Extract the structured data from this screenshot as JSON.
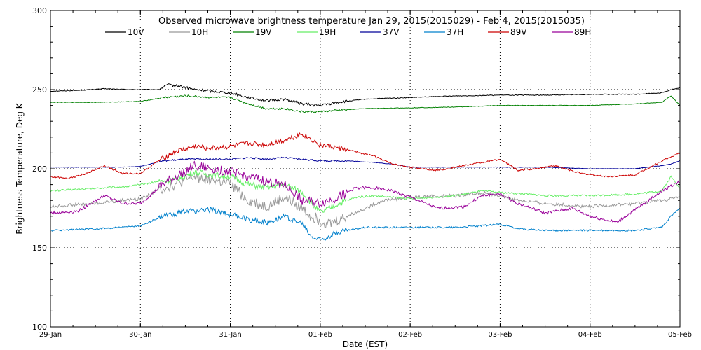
{
  "chart_data": {
    "type": "line",
    "title": "Observed microwave brightness temperature Jan 29, 2015(2015029) - Feb  4, 2015(2015035)",
    "xlabel": "Date (EST)",
    "ylabel": "Brightness Temperature, Deg K",
    "x_ticks": [
      "29-Jan",
      "30-Jan",
      "31-Jan",
      "01-Feb",
      "02-Feb",
      "03-Feb",
      "04-Feb",
      "05-Feb"
    ],
    "xlim": [
      0,
      7
    ],
    "ylim": [
      100,
      300
    ],
    "y_ticks": [
      100,
      150,
      200,
      250,
      300
    ],
    "grid": "dotted",
    "legend_placement": "top",
    "series": [
      {
        "name": "10V",
        "color": "#000000",
        "x": [
          0,
          0.3,
          0.6,
          0.9,
          1.2,
          1.3,
          1.45,
          1.6,
          1.8,
          2.0,
          2.2,
          2.4,
          2.6,
          2.8,
          3.0,
          3.2,
          3.5,
          4.0,
          4.5,
          5.0,
          5.5,
          6.0,
          6.5,
          6.8,
          6.9,
          7.0
        ],
        "y": [
          249,
          249.5,
          250.5,
          250,
          250,
          253,
          252,
          250,
          249,
          248,
          245,
          243,
          244,
          241,
          240,
          242,
          244,
          245,
          246,
          246.5,
          246.5,
          247,
          247,
          248,
          250,
          251
        ]
      },
      {
        "name": "10H",
        "color": "#999999",
        "x": [
          0,
          0.2,
          0.5,
          0.8,
          1.0,
          1.25,
          1.4,
          1.6,
          1.8,
          2.0,
          2.2,
          2.4,
          2.6,
          2.8,
          2.9,
          3.1,
          3.3,
          3.5,
          3.7,
          4.0,
          4.5,
          4.8,
          5.0,
          5.2,
          5.5,
          6.0,
          6.5,
          6.8,
          7.0
        ],
        "y": [
          176,
          177,
          178,
          180,
          181,
          188,
          190,
          195,
          193,
          190,
          180,
          176,
          182,
          175,
          170,
          165,
          170,
          175,
          180,
          182,
          183,
          185,
          183,
          180,
          178,
          176,
          178,
          180,
          182
        ]
      },
      {
        "name": "19V",
        "color": "#008000",
        "x": [
          0,
          0.5,
          1.0,
          1.25,
          1.5,
          1.8,
          2.0,
          2.2,
          2.4,
          2.6,
          2.8,
          3.0,
          3.2,
          3.5,
          4.0,
          4.5,
          5.0,
          5.5,
          6.0,
          6.5,
          6.8,
          6.9,
          7.0
        ],
        "y": [
          242,
          242,
          242.5,
          245,
          246,
          245,
          245,
          241,
          238,
          238,
          236,
          236,
          237,
          238,
          238.5,
          239,
          240,
          240,
          240,
          241,
          242,
          246,
          240
        ]
      },
      {
        "name": "19H",
        "color": "#66ee66",
        "x": [
          0,
          0.3,
          0.6,
          0.9,
          1.2,
          1.4,
          1.6,
          1.8,
          2.0,
          2.2,
          2.4,
          2.6,
          2.8,
          3.0,
          3.2,
          3.4,
          3.6,
          4.0,
          4.5,
          4.8,
          5.0,
          5.3,
          5.5,
          6.0,
          6.5,
          6.8,
          6.9,
          7.0
        ],
        "y": [
          186,
          187,
          188,
          189,
          192,
          193,
          198,
          196,
          195,
          190,
          188,
          190,
          185,
          172,
          178,
          182,
          183,
          181,
          183,
          186,
          185,
          184,
          183,
          183,
          184,
          186,
          195,
          188
        ]
      },
      {
        "name": "37V",
        "color": "#000099",
        "x": [
          0,
          0.5,
          0.8,
          1.0,
          1.25,
          1.5,
          1.8,
          2.0,
          2.2,
          2.4,
          2.6,
          2.8,
          3.0,
          3.3,
          3.6,
          3.8,
          4.0,
          4.5,
          5.0,
          5.5,
          6.0,
          6.5,
          6.8,
          6.9,
          7.0
        ],
        "y": [
          201,
          201,
          201,
          201.5,
          205,
          206,
          206,
          206,
          207,
          206,
          207,
          206,
          205,
          205,
          204,
          203,
          201,
          201,
          201,
          201,
          200,
          200,
          202,
          203,
          205
        ]
      },
      {
        "name": "37H",
        "color": "#0080cc",
        "x": [
          0,
          0.5,
          0.8,
          1.0,
          1.25,
          1.5,
          1.8,
          2.0,
          2.2,
          2.4,
          2.6,
          2.8,
          2.9,
          3.0,
          3.2,
          3.5,
          4.0,
          4.5,
          4.8,
          5.0,
          5.2,
          5.5,
          6.0,
          6.5,
          6.8,
          6.9,
          7.0
        ],
        "y": [
          161,
          162,
          163,
          164,
          170,
          173,
          174,
          171,
          168,
          166,
          170,
          165,
          157,
          155,
          160,
          163,
          163,
          163,
          164,
          165,
          162,
          161,
          161,
          161,
          163,
          170,
          175
        ]
      },
      {
        "name": "89V",
        "color": "#cc0000",
        "x": [
          0,
          0.2,
          0.4,
          0.6,
          0.8,
          1.0,
          1.2,
          1.4,
          1.6,
          1.8,
          2.0,
          2.2,
          2.4,
          2.6,
          2.8,
          3.0,
          3.3,
          3.6,
          3.8,
          4.0,
          4.3,
          4.6,
          4.8,
          5.0,
          5.2,
          5.4,
          5.6,
          5.9,
          6.2,
          6.5,
          6.8,
          7.0
        ],
        "y": [
          195,
          194,
          197,
          202,
          197,
          197,
          205,
          211,
          214,
          213,
          214,
          216,
          215,
          218,
          222,
          215,
          212,
          208,
          203,
          201,
          199,
          202,
          204,
          206,
          199,
          200,
          202,
          197,
          195,
          196,
          205,
          210
        ]
      },
      {
        "name": "89H",
        "color": "#990099",
        "x": [
          0,
          0.3,
          0.6,
          0.8,
          1.0,
          1.25,
          1.4,
          1.6,
          1.8,
          2.0,
          2.2,
          2.4,
          2.6,
          2.8,
          3.0,
          3.2,
          3.4,
          3.6,
          3.8,
          4.0,
          4.3,
          4.6,
          4.8,
          5.0,
          5.2,
          5.5,
          5.8,
          6.0,
          6.3,
          6.6,
          6.8,
          7.0
        ],
        "y": [
          172,
          173,
          183,
          178,
          178,
          190,
          195,
          202,
          200,
          198,
          195,
          192,
          190,
          180,
          178,
          182,
          188,
          188,
          186,
          182,
          175,
          176,
          183,
          184,
          178,
          172,
          175,
          170,
          166,
          178,
          186,
          192
        ]
      }
    ]
  }
}
